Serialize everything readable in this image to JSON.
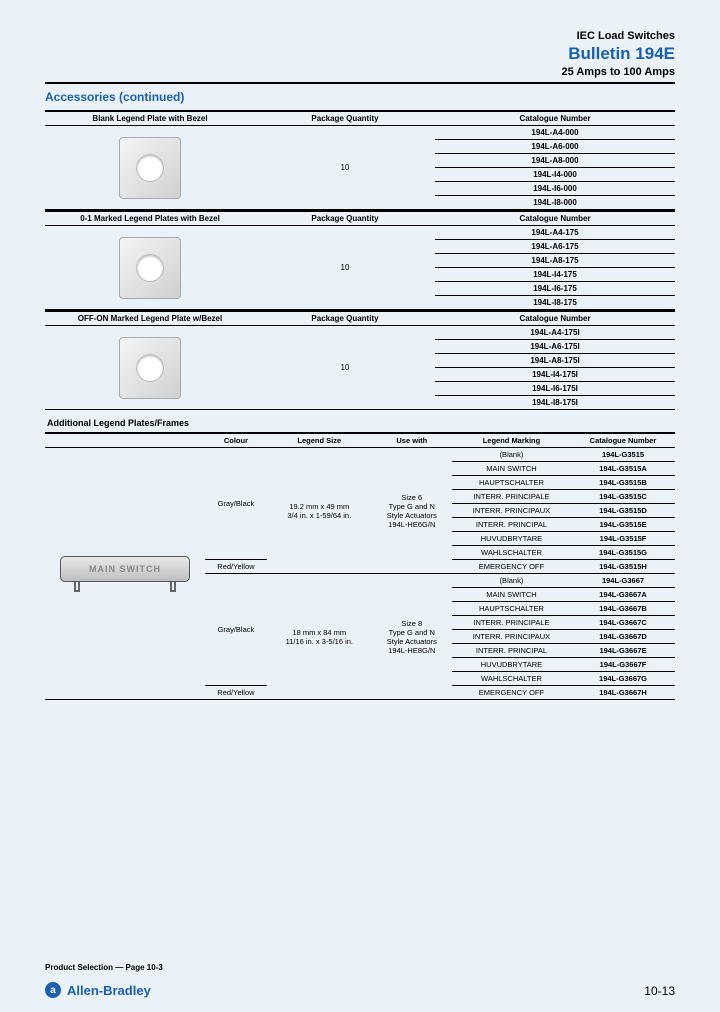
{
  "header": {
    "line1": "IEC Load Switches",
    "line2": "Bulletin 194E",
    "line3": "25 Amps to 100 Amps"
  },
  "section_title": "Accessories (continued)",
  "tables": [
    {
      "col1": "Blank Legend Plate with Bezel",
      "col2": "Package Quantity",
      "col3": "Catalogue Number",
      "qty": "10",
      "rows": [
        "194L-A4-000",
        "194L-A6-000",
        "194L-A8-000",
        "194L-I4-000",
        "194L-I6-000",
        "194L-I8-000"
      ]
    },
    {
      "col1": "0-1 Marked Legend Plates with Bezel",
      "col2": "Package Quantity",
      "col3": "Catalogue Number",
      "qty": "10",
      "rows": [
        "194L-A4-175",
        "194L-A6-175",
        "194L-A8-175",
        "194L-I4-175",
        "194L-I6-175",
        "194L-I8-175"
      ]
    },
    {
      "col1": "OFF-ON Marked Legend Plate w/Bezel",
      "col2": "Package Quantity",
      "col3": "Catalogue Number",
      "qty": "10",
      "rows": [
        "194L-A4-175I",
        "194L-A6-175I",
        "194L-A8-175I",
        "194L-I4-175I",
        "194L-I6-175I",
        "194L-I8-175I"
      ]
    }
  ],
  "subsection_title": "Additional Legend Plates/Frames",
  "t2_headers": [
    "Colour",
    "Legend Size",
    "Use with",
    "Legend Marking",
    "Catalogue Number"
  ],
  "mainswitch_label": "MAIN SWITCH",
  "t2_groups": [
    {
      "colour1": "Gray/Black",
      "colour2": "Red/Yellow",
      "size_line1": "19.2 mm x 49 mm",
      "size_line2": "3/4 in. x 1-59/64 in.",
      "use_line1": "Size 6",
      "use_line2": "Type G and N",
      "use_line3": "Style Actuators",
      "use_line4": "194L-HE6G/N",
      "rows": [
        {
          "lm": "(Blank)",
          "cn": "194L-G3515"
        },
        {
          "lm": "MAIN SWITCH",
          "cn": "194L-G3515A"
        },
        {
          "lm": "HAUPTSCHALTER",
          "cn": "194L-G3515B"
        },
        {
          "lm": "INTERR. PRINCIPALE",
          "cn": "194L-G3515C"
        },
        {
          "lm": "INTERR. PRINCIPAUX",
          "cn": "194L-G3515D"
        },
        {
          "lm": "INTERR. PRINCIPAL",
          "cn": "194L-G3515E"
        },
        {
          "lm": "HUVUDBRYTARE",
          "cn": "194L-G3515F"
        },
        {
          "lm": "WAHLSCHALTER",
          "cn": "194L-G3515G"
        },
        {
          "lm": "EMERGENCY OFF",
          "cn": "194L-G3515H"
        }
      ]
    },
    {
      "colour1": "Gray/Black",
      "colour2": "Red/Yellow",
      "size_line1": "18 mm x 84 mm",
      "size_line2": "11/16 in. x 3-5/16 in.",
      "use_line1": "Size 8",
      "use_line2": "Type G and N",
      "use_line3": "Style Actuators",
      "use_line4": "194L-HE8G/N",
      "rows": [
        {
          "lm": "(Blank)",
          "cn": "194L-G3667"
        },
        {
          "lm": "MAIN SWITCH",
          "cn": "194L-G3667A"
        },
        {
          "lm": "HAUPTSCHALTER",
          "cn": "194L-G3667B"
        },
        {
          "lm": "INTERR. PRINCIPALE",
          "cn": "194L-G3667C"
        },
        {
          "lm": "INTERR. PRINCIPAUX",
          "cn": "194L-G3667D"
        },
        {
          "lm": "INTERR. PRINCIPAL",
          "cn": "194L-G3667E"
        },
        {
          "lm": "HUVUDBRYTARE",
          "cn": "194L-G3667F"
        },
        {
          "lm": "WAHLSCHALTER",
          "cn": "194L-G3667G"
        },
        {
          "lm": "EMERGENCY OFF",
          "cn": "194L-G3667H"
        }
      ]
    }
  ],
  "footer_left": "Product Selection — Page 10-3",
  "brand": "Allen-Bradley",
  "brand_glyph": "ⓐ",
  "page_num": "10-13",
  "colors": {
    "page_bg": "#eaf1f7",
    "accent_blue": "#1a5fb4",
    "rule": "#000000"
  }
}
